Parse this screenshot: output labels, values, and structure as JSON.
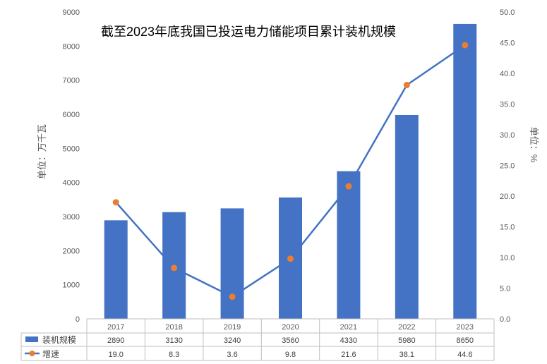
{
  "chart_data": {
    "type": "bar",
    "title": "截至2023年底我国已投运电力储能项目累计装机规模",
    "categories": [
      "2017",
      "2018",
      "2019",
      "2020",
      "2021",
      "2022",
      "2023"
    ],
    "series": [
      {
        "name": "装机规模",
        "type": "bar",
        "axis": "left",
        "values": [
          2890,
          3130,
          3240,
          3560,
          4330,
          5980,
          8650
        ],
        "color": "#4472c4"
      },
      {
        "name": "增速",
        "type": "line",
        "axis": "right",
        "values": [
          19.0,
          8.3,
          3.6,
          9.8,
          21.6,
          38.1,
          44.6
        ],
        "color": "#4472c4",
        "marker_color": "#ed7d31"
      }
    ],
    "value_labels": {
      "bar": [
        "2890",
        "3130",
        "3240",
        "3560",
        "4330",
        "5980",
        "8650"
      ],
      "line": [
        "19.0",
        "8.3",
        "3.6",
        "9.8",
        "21.6",
        "38.1",
        "44.6"
      ]
    },
    "ylabel": "单位：万千瓦",
    "y2label": "单位：%",
    "ylim": [
      0,
      9000
    ],
    "y2lim": [
      0,
      50
    ],
    "yticks": [
      "0",
      "1000",
      "2000",
      "3000",
      "4000",
      "5000",
      "6000",
      "7000",
      "8000",
      "9000"
    ],
    "y2ticks": [
      "0.0",
      "5.0",
      "10.0",
      "15.0",
      "20.0",
      "25.0",
      "30.0",
      "35.0",
      "40.0",
      "45.0",
      "50.0"
    ],
    "legend": "data-table",
    "grid": false
  }
}
